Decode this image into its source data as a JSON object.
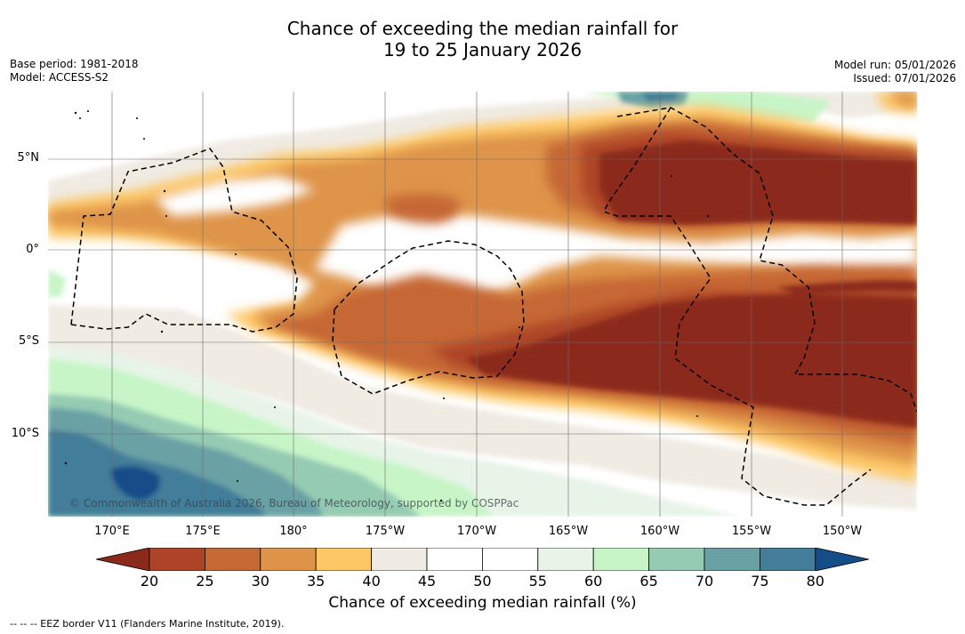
{
  "title_line1": "Chance of exceeding the median rainfall for",
  "title_line2": "19 to 25 January 2026",
  "meta_left": {
    "base_period": "Base period: 1981-2018",
    "model": "Model: ACCESS-S2"
  },
  "meta_right": {
    "model_run": "Model run: 05/01/2026",
    "issued": "Issued: 07/01/2026"
  },
  "copyright": "© Commonwealth of Australia 2026, Bureau of Meteorology, supported by COSPPac",
  "latitude_labels": [
    "5°N",
    "0°",
    "5°S",
    "10°S"
  ],
  "longitude_labels": [
    "170°E",
    "175°E",
    "180°",
    "175°W",
    "170°W",
    "165°W",
    "160°W",
    "155°W",
    "150°W"
  ],
  "colorbar": {
    "ticks": [
      "20",
      "25",
      "30",
      "35",
      "40",
      "45",
      "50",
      "55",
      "60",
      "65",
      "70",
      "75",
      "80"
    ],
    "colors": [
      "#8b2a1a",
      "#ad4428",
      "#c66834",
      "#de9448",
      "#fdc766",
      "#f0ebe3",
      "#ffffff",
      "#ffffff",
      "#e7f4e7",
      "#c7f5c8",
      "#95cbb3",
      "#6aa1a5",
      "#437d99",
      "#154d89"
    ],
    "title": "Chance of exceeding median rainfall (%)"
  },
  "eez_note": "--  --  -- EEZ border V11 (Flanders Marine Institute, 2019)."
}
